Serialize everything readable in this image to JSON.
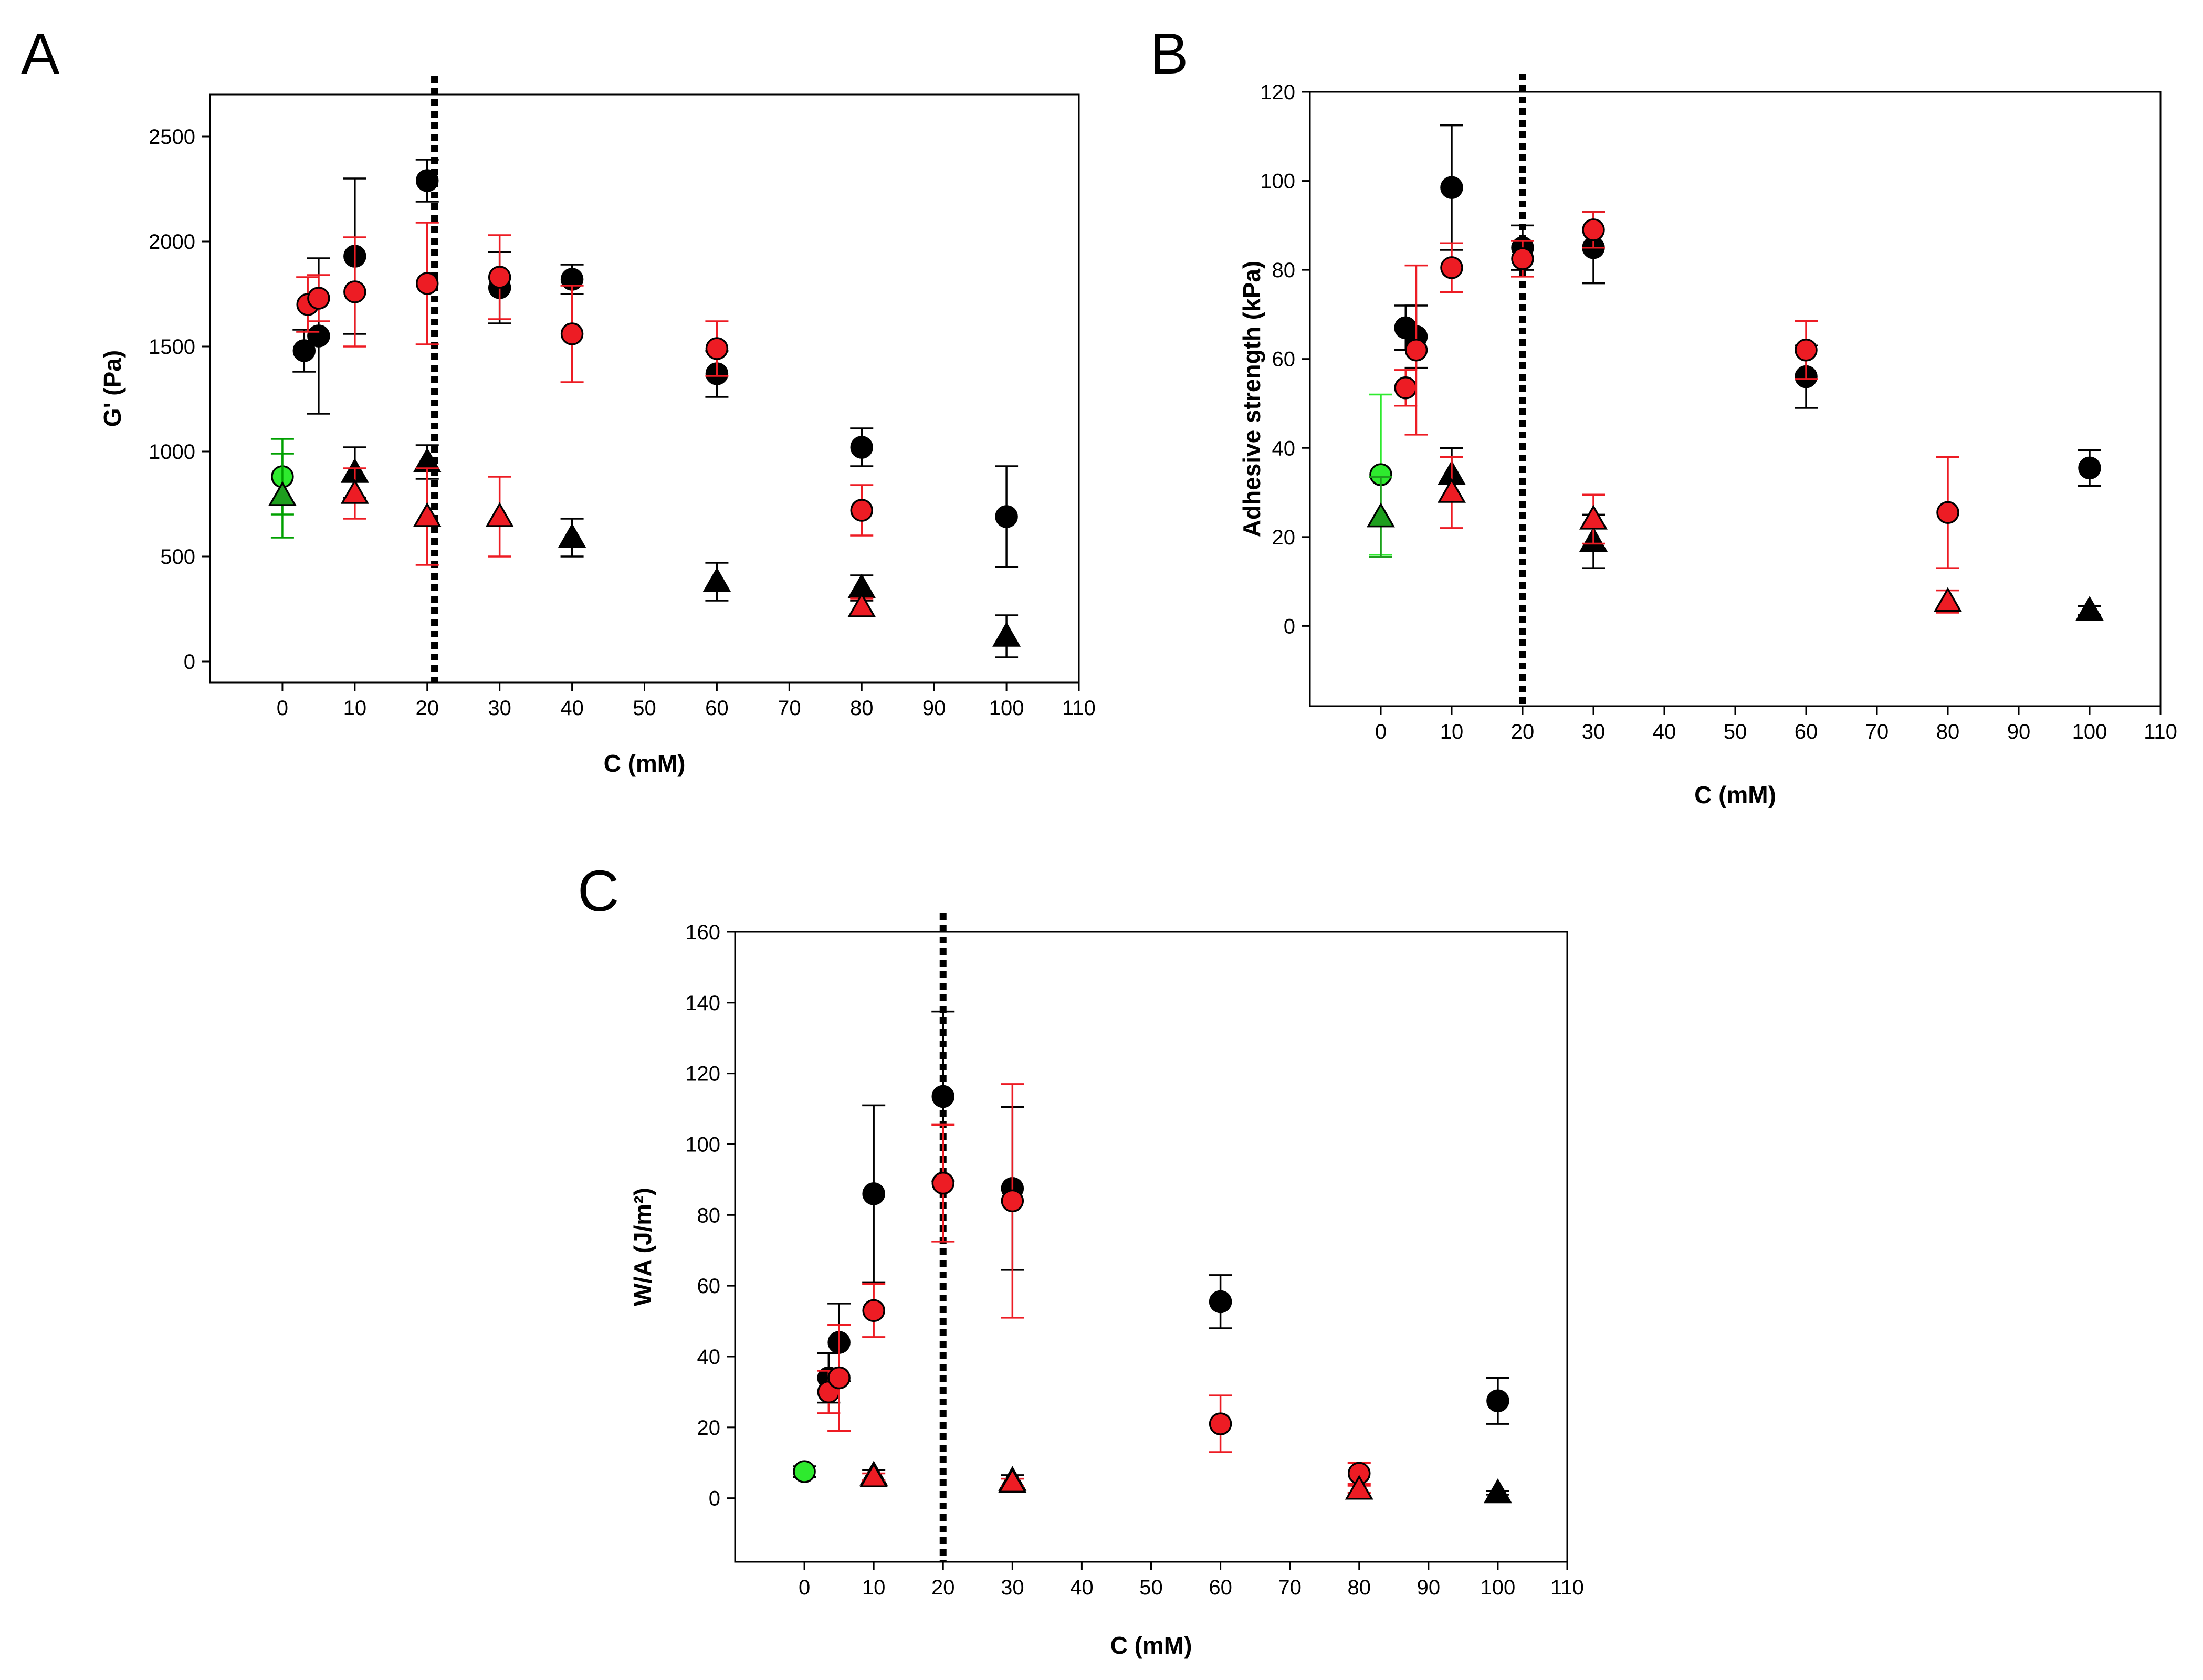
{
  "chart_data": [
    {
      "type": "scatter",
      "panel": "A",
      "xlabel": "C (mM)",
      "ylabel": "G' (Pa)",
      "xlim": [
        -10,
        110
      ],
      "ylim": [
        -100,
        2700
      ],
      "xticks": [
        0,
        10,
        20,
        30,
        40,
        50,
        60,
        70,
        80,
        90,
        100,
        110
      ],
      "yticks": [
        0,
        500,
        1000,
        1500,
        2000,
        2500
      ],
      "reference_line_x": 21,
      "grid": false,
      "legend": "none",
      "series": [
        {
          "color": "#000000",
          "marker": "circle",
          "points": [
            {
              "x": 3,
              "y": 1480,
              "err": 100
            },
            {
              "x": 5,
              "y": 1550,
              "err": 370
            },
            {
              "x": 10,
              "y": 1930,
              "err": 370
            },
            {
              "x": 20,
              "y": 2290,
              "err": 100
            },
            {
              "x": 30,
              "y": 1780,
              "err": 170
            },
            {
              "x": 40,
              "y": 1820,
              "err": 70
            },
            {
              "x": 60,
              "y": 1370,
              "err": 110
            },
            {
              "x": 80,
              "y": 1020,
              "err": 90
            },
            {
              "x": 100,
              "y": 690,
              "err": 240
            }
          ]
        },
        {
          "color": "#ed1c24",
          "marker": "circle",
          "points": [
            {
              "x": 3.5,
              "y": 1700,
              "err": 130
            },
            {
              "x": 5,
              "y": 1730,
              "err": 110
            },
            {
              "x": 10,
              "y": 1760,
              "err": 260
            },
            {
              "x": 20,
              "y": 1800,
              "err": 290
            },
            {
              "x": 30,
              "y": 1830,
              "err": 200
            },
            {
              "x": 40,
              "y": 1560,
              "err": 230
            },
            {
              "x": 60,
              "y": 1490,
              "err": 130
            },
            {
              "x": 80,
              "y": 720,
              "err": 120
            }
          ]
        },
        {
          "color": "#000000",
          "marker": "triangle",
          "points": [
            {
              "x": 10,
              "y": 900,
              "err": 120
            },
            {
              "x": 20,
              "y": 950,
              "err": 80
            },
            {
              "x": 40,
              "y": 590,
              "err": 90
            },
            {
              "x": 60,
              "y": 380,
              "err": 90
            },
            {
              "x": 80,
              "y": 350,
              "err": 60
            },
            {
              "x": 100,
              "y": 120,
              "err": 100
            }
          ]
        },
        {
          "color": "#ed1c24",
          "marker": "triangle",
          "points": [
            {
              "x": 10,
              "y": 800,
              "err": 120
            },
            {
              "x": 20,
              "y": 690,
              "err": 230
            },
            {
              "x": 30,
              "y": 690,
              "err": 190
            },
            {
              "x": 80,
              "y": 260,
              "err": 40
            }
          ]
        },
        {
          "color": "#2eea2e",
          "errcolor": "#00a000",
          "marker": "circle",
          "points": [
            {
              "x": 0,
              "y": 880,
              "err": 180
            }
          ]
        },
        {
          "color": "#1e9e1e",
          "errcolor": "#00a000",
          "marker": "triangle",
          "points": [
            {
              "x": 0,
              "y": 790,
              "err": 200
            }
          ]
        }
      ]
    },
    {
      "type": "scatter",
      "panel": "B",
      "xlabel": "C (mM)",
      "ylabel": "Adhesive strength (kPa)",
      "xlim": [
        -10,
        110
      ],
      "ylim": [
        -18,
        120
      ],
      "xticks": [
        0,
        10,
        20,
        30,
        40,
        50,
        60,
        70,
        80,
        90,
        100,
        110
      ],
      "yticks": [
        0,
        20,
        40,
        60,
        80,
        100,
        120
      ],
      "reference_line_x": 20,
      "grid": false,
      "legend": "none",
      "series": [
        {
          "color": "#000000",
          "marker": "circle",
          "points": [
            {
              "x": 3.5,
              "y": 67,
              "err": 5
            },
            {
              "x": 5,
              "y": 65,
              "err": 7
            },
            {
              "x": 10,
              "y": 98.5,
              "err": 14
            },
            {
              "x": 20,
              "y": 85,
              "err": 5
            },
            {
              "x": 30,
              "y": 85,
              "err": 8
            },
            {
              "x": 60,
              "y": 56,
              "err": 7
            },
            {
              "x": 100,
              "y": 35.5,
              "err": 4
            }
          ]
        },
        {
          "color": "#ed1c24",
          "marker": "circle",
          "points": [
            {
              "x": 3.5,
              "y": 53.5,
              "err": 4
            },
            {
              "x": 5,
              "y": 62,
              "err": 19
            },
            {
              "x": 10,
              "y": 80.5,
              "err": 5.5
            },
            {
              "x": 20,
              "y": 82.5,
              "err": 4
            },
            {
              "x": 30,
              "y": 89,
              "err": 4
            },
            {
              "x": 60,
              "y": 62,
              "err": 6.5
            },
            {
              "x": 80,
              "y": 25.5,
              "err": 12.5
            }
          ]
        },
        {
          "color": "#000000",
          "marker": "triangle",
          "points": [
            {
              "x": 10,
              "y": 34,
              "err": 6
            },
            {
              "x": 30,
              "y": 19,
              "err": 6
            },
            {
              "x": 100,
              "y": 3.5,
              "err": 1
            }
          ]
        },
        {
          "color": "#ed1c24",
          "marker": "triangle",
          "points": [
            {
              "x": 10,
              "y": 30,
              "err": 8
            },
            {
              "x": 30,
              "y": 24,
              "err": 5.5
            },
            {
              "x": 80,
              "y": 5.5,
              "err": 2.5
            }
          ]
        },
        {
          "color": "#2eea2e",
          "errcolor": "#2eea2e",
          "marker": "circle",
          "points": [
            {
              "x": 0,
              "y": 34,
              "err": 18
            }
          ]
        },
        {
          "color": "#1e9e1e",
          "errcolor": "#1e9e1e",
          "marker": "triangle",
          "points": [
            {
              "x": 0,
              "y": 24.5,
              "err": 9
            }
          ]
        }
      ]
    },
    {
      "type": "scatter",
      "panel": "C",
      "xlabel": "C (mM)",
      "ylabel": "W/A (J/m²)",
      "xlim": [
        -10,
        110
      ],
      "ylim": [
        -18,
        160
      ],
      "xticks": [
        0,
        10,
        20,
        30,
        40,
        50,
        60,
        70,
        80,
        90,
        100,
        110
      ],
      "yticks": [
        0,
        20,
        40,
        60,
        80,
        100,
        120,
        140,
        160
      ],
      "reference_line_x": 20,
      "grid": false,
      "legend": "none",
      "series": [
        {
          "color": "#000000",
          "marker": "circle",
          "points": [
            {
              "x": 3.5,
              "y": 34,
              "err": 7
            },
            {
              "x": 5,
              "y": 44,
              "err": 11
            },
            {
              "x": 10,
              "y": 86,
              "err": 25
            },
            {
              "x": 20,
              "y": 113.5,
              "err": 24
            },
            {
              "x": 30,
              "y": 87.5,
              "err": 23
            },
            {
              "x": 60,
              "y": 55.5,
              "err": 7.5
            },
            {
              "x": 100,
              "y": 27.5,
              "err": 6.5
            }
          ]
        },
        {
          "color": "#ed1c24",
          "marker": "circle",
          "points": [
            {
              "x": 3.5,
              "y": 30,
              "err": 6
            },
            {
              "x": 5,
              "y": 34,
              "err": 15
            },
            {
              "x": 10,
              "y": 53,
              "err": 7.5
            },
            {
              "x": 20,
              "y": 89,
              "err": 16.5
            },
            {
              "x": 30,
              "y": 84,
              "err": 33
            },
            {
              "x": 60,
              "y": 21,
              "err": 8
            },
            {
              "x": 80,
              "y": 7,
              "err": 3
            }
          ]
        },
        {
          "color": "#000000",
          "marker": "triangle",
          "points": [
            {
              "x": 10,
              "y": 6.5,
              "err": 1.5
            },
            {
              "x": 30,
              "y": 5,
              "err": 1.5
            },
            {
              "x": 100,
              "y": 1.5,
              "err": 0.5
            }
          ]
        },
        {
          "color": "#ed1c24",
          "marker": "triangle",
          "points": [
            {
              "x": 10,
              "y": 6,
              "err": 1
            },
            {
              "x": 30,
              "y": 4.5,
              "err": 1
            },
            {
              "x": 80,
              "y": 2.5,
              "err": 1
            }
          ]
        },
        {
          "color": "#2eea2e",
          "errcolor": "#000000",
          "marker": "circle",
          "points": [
            {
              "x": 0,
              "y": 7.5,
              "err": 1.5
            }
          ]
        }
      ]
    }
  ]
}
